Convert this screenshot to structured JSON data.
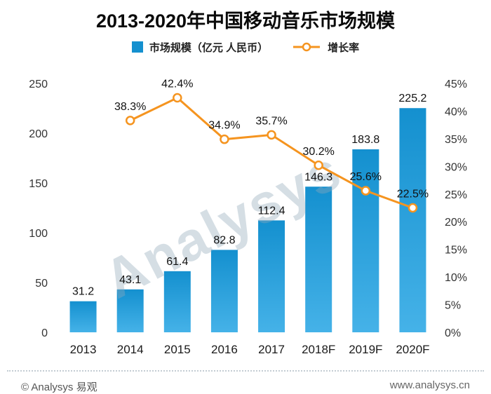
{
  "title": "2013-2020年中国移动音乐市场规模",
  "legend": {
    "bars": "市场规模（亿元 人民币）",
    "line": "增长率"
  },
  "watermark": "Analysys",
  "footer": {
    "left": "© Analysys 易观",
    "right": "www.analysys.cn"
  },
  "colors": {
    "bar_top": "#1490cf",
    "bar_bottom": "#45b2e8",
    "line": "#f5941f",
    "title": "#0a0a0a"
  },
  "chart_data": {
    "type": "bar",
    "title": "2013-2020年中国移动音乐市场规模",
    "categories": [
      "2013",
      "2014",
      "2015",
      "2016",
      "2017",
      "2018F",
      "2019F",
      "2020F"
    ],
    "series": [
      {
        "name": "市场规模（亿元 人民币）",
        "type": "bar",
        "axis": "left",
        "values": [
          31.2,
          43.1,
          61.4,
          82.8,
          112.4,
          146.3,
          183.8,
          225.2
        ]
      },
      {
        "name": "增长率",
        "type": "line",
        "axis": "right",
        "unit": "%",
        "values": [
          null,
          38.3,
          42.4,
          34.9,
          35.7,
          30.2,
          25.6,
          22.5
        ]
      }
    ],
    "left_axis": {
      "min": 0,
      "max": 250,
      "step": 50
    },
    "right_axis": {
      "min": 0,
      "max": 45,
      "step": 5,
      "unit": "%"
    },
    "grid": false,
    "legend_position": "top"
  }
}
